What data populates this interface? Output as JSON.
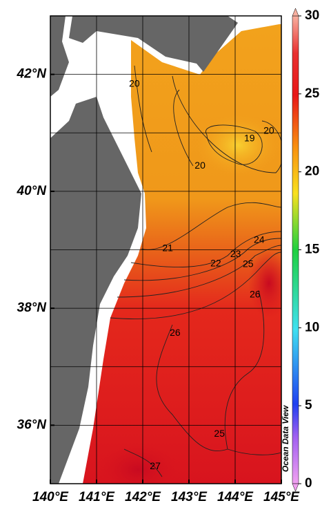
{
  "chart_data": {
    "type": "contour-map",
    "xlim": [
      140,
      145
    ],
    "ylim": [
      35,
      43
    ],
    "xticks": [
      {
        "value": 140,
        "label": "140°E"
      },
      {
        "value": 141,
        "label": "141°E"
      },
      {
        "value": 142,
        "label": "142°E"
      },
      {
        "value": 143,
        "label": "143°E"
      },
      {
        "value": 144,
        "label": "144°E"
      },
      {
        "value": 145,
        "label": "145°E"
      }
    ],
    "yticks": [
      {
        "value": 36,
        "label": "36°N"
      },
      {
        "value": 38,
        "label": "38°N"
      },
      {
        "value": 40,
        "label": "40°N"
      },
      {
        "value": 42,
        "label": "42°N"
      }
    ],
    "grid": true,
    "colorbar": {
      "lim": [
        0,
        30
      ],
      "ticks": [
        0,
        5,
        10,
        15,
        20,
        25,
        30
      ]
    },
    "contour_labels": [
      {
        "value": 20,
        "x": 141.82,
        "y": 41.83
      },
      {
        "value": 20,
        "x": 144.73,
        "y": 41.03
      },
      {
        "value": 19,
        "x": 144.31,
        "y": 40.9
      },
      {
        "value": 20,
        "x": 143.24,
        "y": 40.43
      },
      {
        "value": 21,
        "x": 142.54,
        "y": 39.02
      },
      {
        "value": 22,
        "x": 143.58,
        "y": 38.76
      },
      {
        "value": 23,
        "x": 144.01,
        "y": 38.92
      },
      {
        "value": 24,
        "x": 144.52,
        "y": 39.16
      },
      {
        "value": 25,
        "x": 144.28,
        "y": 38.75
      },
      {
        "value": 26,
        "x": 144.43,
        "y": 38.23
      },
      {
        "value": 26,
        "x": 142.7,
        "y": 37.57
      },
      {
        "value": 25,
        "x": 143.66,
        "y": 35.85
      },
      {
        "value": 27,
        "x": 142.27,
        "y": 35.29
      }
    ],
    "watermark": "Ocean Data View"
  }
}
